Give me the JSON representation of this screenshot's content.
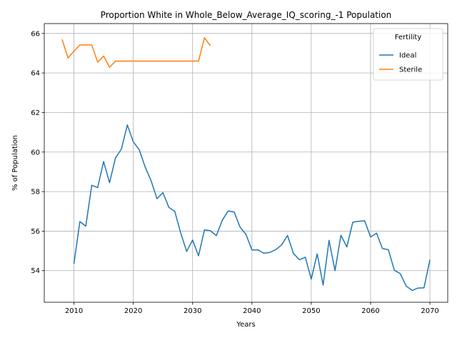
{
  "chart_data": {
    "type": "line",
    "title": "Proportion White in Whole_Below_Average_IQ_scoring_-1 Population",
    "xlabel": "Years",
    "ylabel": "% of Population",
    "xlim": [
      2005,
      2073
    ],
    "ylim": [
      52.4,
      66.5
    ],
    "xticks": [
      2010,
      2020,
      2030,
      2040,
      2050,
      2060,
      2070
    ],
    "yticks": [
      54,
      56,
      58,
      60,
      62,
      64,
      66
    ],
    "grid": true,
    "legend": {
      "title": "Fertility",
      "placement": "top-right"
    },
    "series": [
      {
        "name": "Ideal",
        "color": "#1f77b4",
        "x": [
          2010,
          2011,
          2012,
          2013,
          2014,
          2015,
          2016,
          2017,
          2018,
          2019,
          2020,
          2021,
          2022,
          2023,
          2024,
          2025,
          2026,
          2027,
          2028,
          2029,
          2030,
          2031,
          2032,
          2033,
          2034,
          2035,
          2036,
          2037,
          2038,
          2039,
          2040,
          2041,
          2042,
          2043,
          2044,
          2045,
          2046,
          2047,
          2048,
          2049,
          2050,
          2051,
          2052,
          2053,
          2054,
          2055,
          2056,
          2057,
          2058,
          2059,
          2060,
          2061,
          2062,
          2063,
          2064,
          2065,
          2066,
          2067,
          2068,
          2069,
          2070
        ],
        "y": [
          54.35,
          56.48,
          56.25,
          58.32,
          58.2,
          59.52,
          58.45,
          59.7,
          60.15,
          61.37,
          60.52,
          60.12,
          59.25,
          58.55,
          57.64,
          57.95,
          57.2,
          57.0,
          55.9,
          54.97,
          55.55,
          54.75,
          56.06,
          56.02,
          55.77,
          56.55,
          57.02,
          56.97,
          56.2,
          55.83,
          55.05,
          55.05,
          54.88,
          54.92,
          55.06,
          55.3,
          55.78,
          54.87,
          54.55,
          54.68,
          53.57,
          54.85,
          53.27,
          55.53,
          54.0,
          55.79,
          55.2,
          56.45,
          56.5,
          56.52,
          55.7,
          55.9,
          55.12,
          55.06,
          54.02,
          53.85,
          53.22,
          53.0,
          53.12,
          53.13,
          54.55
        ]
      },
      {
        "name": "Sterile",
        "color": "#ff7f0e",
        "x": [
          2008,
          2009,
          2010,
          2011,
          2012,
          2013,
          2014,
          2015,
          2016,
          2017,
          2018,
          2019,
          2020,
          2021,
          2022,
          2023,
          2024,
          2025,
          2026,
          2027,
          2028,
          2029,
          2030,
          2031,
          2032,
          2033
        ],
        "y": [
          65.7,
          64.76,
          65.1,
          65.42,
          65.42,
          65.42,
          64.55,
          64.86,
          64.29,
          64.6,
          64.6,
          64.6,
          64.6,
          64.6,
          64.6,
          64.6,
          64.6,
          64.6,
          64.6,
          64.6,
          64.6,
          64.6,
          64.6,
          64.6,
          65.78,
          65.38
        ]
      }
    ]
  }
}
